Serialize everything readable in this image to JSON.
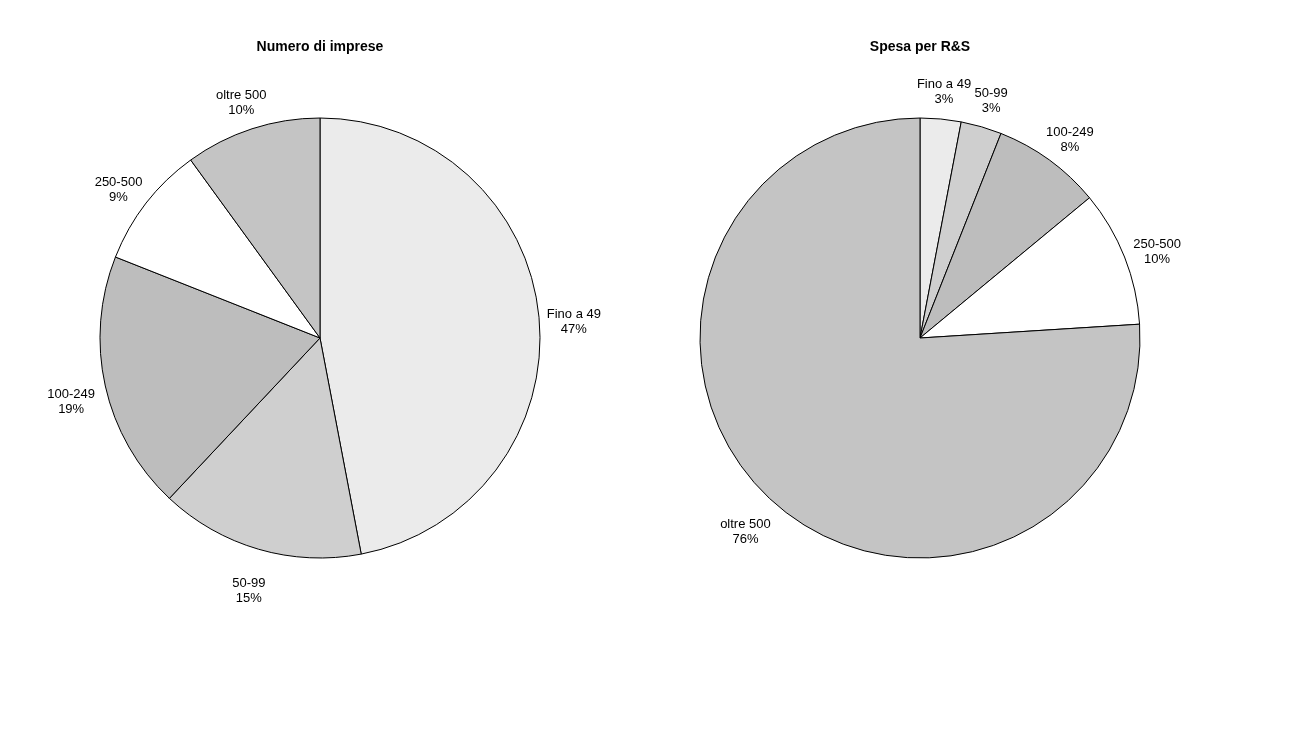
{
  "chart_data": [
    {
      "type": "pie",
      "title": "Numero di imprese",
      "categories": [
        "Fino a 49",
        "50-99",
        "100-249",
        "250-500",
        "oltre 500"
      ],
      "values": [
        47,
        15,
        19,
        9,
        10
      ],
      "colors": [
        "#ebebeb",
        "#cfcfcf",
        "#bdbdbd",
        "#ffffff",
        "#c4c4c4"
      ],
      "value_labels": [
        "47%",
        "15%",
        "19%",
        "9%",
        "10%"
      ],
      "legend": false
    },
    {
      "type": "pie",
      "title": "Spesa per R&S",
      "categories": [
        "Fino a 49",
        "50-99",
        "100-249",
        "250-500",
        "oltre 500"
      ],
      "values": [
        3,
        3,
        8,
        10,
        76
      ],
      "colors": [
        "#e6e6e6",
        "#dcdcdc",
        "#bdbdbd",
        "#f5f5f5",
        "#cacaca"
      ],
      "value_labels": [
        "3%",
        "3%",
        "8%",
        "10%",
        "76%"
      ],
      "legend": false
    }
  ]
}
